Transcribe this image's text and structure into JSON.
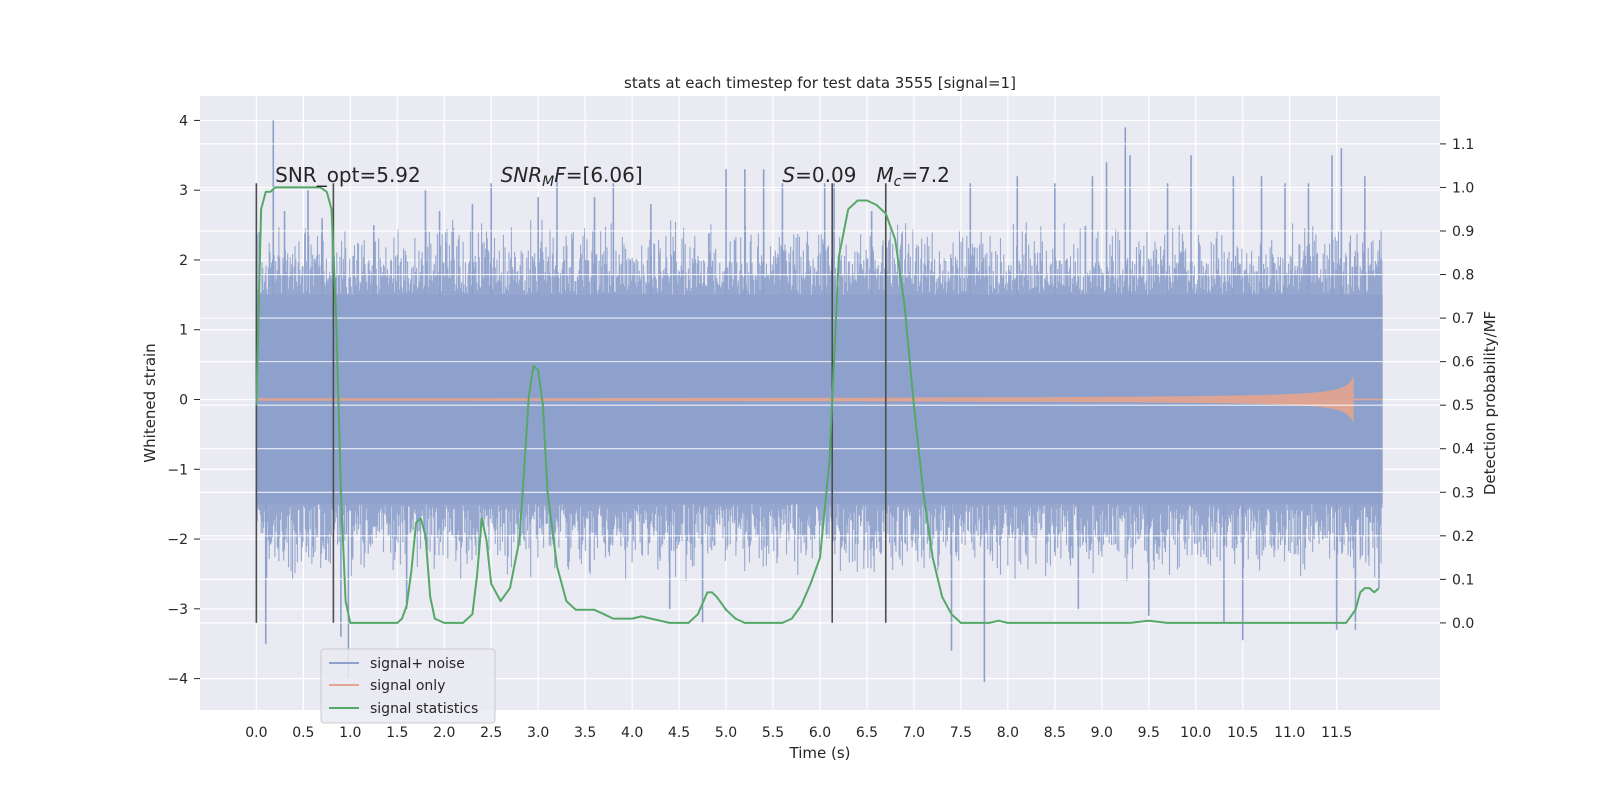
{
  "chart_data": {
    "type": "line",
    "title": "stats at each timestep for test data 3555 [signal=1]",
    "xlabel": "Time (s)",
    "ylabel": "Whitened strain",
    "y2label": "Detection probability/MF",
    "xlim": [
      -0.6,
      12.6
    ],
    "ylim": [
      -4.45,
      4.35
    ],
    "y2lim": [
      -0.2,
      1.21
    ],
    "x_ticks": [
      "0.0",
      "0.5",
      "1.0",
      "1.5",
      "2.0",
      "2.5",
      "3.0",
      "3.5",
      "4.0",
      "4.5",
      "5.0",
      "5.5",
      "6.0",
      "6.5",
      "7.0",
      "7.5",
      "8.0",
      "8.5",
      "9.0",
      "9.5",
      "10.0",
      "10.5",
      "11.0",
      "11.5"
    ],
    "y_ticks": [
      "4",
      "3",
      "2",
      "1",
      "0",
      "−1",
      "−2",
      "−3",
      "−4"
    ],
    "y2_ticks": [
      "1.1",
      "1.0",
      "0.9",
      "0.8",
      "0.7",
      "0.6",
      "0.5",
      "0.4",
      "0.3",
      "0.2",
      "0.1",
      "0.0"
    ],
    "grid": true,
    "legend_position": "lower-left",
    "annotations": [
      {
        "text": "SNR_opt=5.92",
        "x": 0.2,
        "y": 3.12
      },
      {
        "mathLead": "SNR",
        "mathSub": "M",
        "mathTail": "F",
        "text": "=[6.06]",
        "x": 2.6,
        "y": 3.12
      },
      {
        "mathLead": "S",
        "text": "=0.09",
        "x": 5.6,
        "y": 3.12
      },
      {
        "mathLead": "M",
        "mathSub": "c",
        "text": "=7.2",
        "x": 6.6,
        "y": 3.12
      }
    ],
    "vlines": [
      {
        "x": 0.0,
        "ymin": -3.2,
        "ymax": 3.1
      },
      {
        "x": 0.82,
        "ymin": -3.2,
        "ymax": 3.1
      },
      {
        "x": 6.13,
        "ymin": -3.2,
        "ymax": 3.1
      },
      {
        "x": 6.7,
        "ymin": -3.2,
        "ymax": 3.1
      }
    ],
    "series": [
      {
        "name": "signal+ noise",
        "color": "#8da0cb",
        "axis": "left",
        "t_end": 11.99,
        "core_amplitude": 1.5,
        "typical_peak": 2.3,
        "spikes": [
          [
            0.03,
            2.4
          ],
          [
            0.05,
            -1.2
          ],
          [
            0.1,
            -3.5
          ],
          [
            0.18,
            4.0
          ],
          [
            0.3,
            2.7
          ],
          [
            0.55,
            3.0
          ],
          [
            0.7,
            2.6
          ],
          [
            0.9,
            -3.4
          ],
          [
            0.98,
            -4.0
          ],
          [
            1.25,
            2.5
          ],
          [
            1.6,
            -3.0
          ],
          [
            1.8,
            3.0
          ],
          [
            1.95,
            2.7
          ],
          [
            2.3,
            2.8
          ],
          [
            2.5,
            3.1
          ],
          [
            3.0,
            2.9
          ],
          [
            3.2,
            3.2
          ],
          [
            3.6,
            2.9
          ],
          [
            3.8,
            3.1
          ],
          [
            4.2,
            2.8
          ],
          [
            4.4,
            -3.0
          ],
          [
            4.75,
            -3.2
          ],
          [
            5.0,
            3.3
          ],
          [
            5.2,
            3.3
          ],
          [
            5.4,
            3.3
          ],
          [
            5.6,
            3.1
          ],
          [
            6.05,
            3.1
          ],
          [
            6.15,
            3.1
          ],
          [
            6.55,
            2.7
          ],
          [
            7.4,
            -3.6
          ],
          [
            7.6,
            3.1
          ],
          [
            7.75,
            -4.05
          ],
          [
            8.1,
            3.2
          ],
          [
            8.5,
            3.1
          ],
          [
            8.75,
            -3.0
          ],
          [
            8.9,
            3.2
          ],
          [
            9.05,
            3.4
          ],
          [
            9.25,
            3.9
          ],
          [
            9.3,
            3.5
          ],
          [
            9.5,
            -3.1
          ],
          [
            9.7,
            3.1
          ],
          [
            9.95,
            3.5
          ],
          [
            10.3,
            -3.2
          ],
          [
            10.4,
            3.2
          ],
          [
            10.5,
            -3.45
          ],
          [
            10.7,
            3.2
          ],
          [
            10.95,
            3.1
          ],
          [
            11.2,
            3.1
          ],
          [
            11.45,
            3.5
          ],
          [
            11.5,
            -3.3
          ],
          [
            11.55,
            3.6
          ],
          [
            11.7,
            -3.3
          ],
          [
            11.8,
            3.2
          ],
          [
            11.95,
            -2.7
          ]
        ]
      },
      {
        "name": "signal only",
        "color": "#e5a48d",
        "axis": "left",
        "chirp_peak_time": 11.68,
        "chirp_peak_amplitude": 0.65,
        "visible_from": 7.0
      },
      {
        "name": "signal statistics",
        "color": "#55a868",
        "axis": "right",
        "x": [
          0.0,
          0.05,
          0.1,
          0.15,
          0.2,
          0.3,
          0.4,
          0.5,
          0.6,
          0.68,
          0.75,
          0.8,
          0.85,
          0.9,
          0.95,
          1.0,
          1.05,
          1.1,
          1.3,
          1.5,
          1.55,
          1.6,
          1.65,
          1.7,
          1.75,
          1.8,
          1.85,
          1.9,
          2.0,
          2.1,
          2.2,
          2.3,
          2.35,
          2.4,
          2.45,
          2.5,
          2.6,
          2.7,
          2.8,
          2.85,
          2.9,
          2.95,
          3.0,
          3.05,
          3.1,
          3.2,
          3.3,
          3.4,
          3.5,
          3.6,
          3.7,
          3.8,
          4.0,
          4.1,
          4.2,
          4.4,
          4.6,
          4.7,
          4.8,
          4.85,
          4.9,
          5.0,
          5.1,
          5.2,
          5.4,
          5.6,
          5.7,
          5.8,
          5.9,
          6.0,
          6.1,
          6.2,
          6.3,
          6.4,
          6.5,
          6.6,
          6.7,
          6.8,
          6.9,
          7.0,
          7.1,
          7.2,
          7.3,
          7.4,
          7.5,
          7.6,
          7.7,
          7.8,
          7.9,
          8.0,
          8.2,
          8.5,
          9.0,
          9.3,
          9.5,
          9.7,
          10.0,
          10.5,
          10.8,
          11.0,
          11.2,
          11.5,
          11.6,
          11.7,
          11.75,
          11.8,
          11.85,
          11.9,
          11.95
        ],
        "values": [
          0.5,
          0.95,
          0.99,
          0.99,
          1.0,
          1.0,
          1.0,
          1.0,
          1.0,
          1.0,
          0.99,
          0.95,
          0.7,
          0.3,
          0.05,
          0.0,
          0.0,
          0.0,
          0.0,
          0.0,
          0.01,
          0.04,
          0.12,
          0.23,
          0.24,
          0.2,
          0.06,
          0.01,
          0.0,
          0.0,
          0.0,
          0.02,
          0.11,
          0.24,
          0.19,
          0.09,
          0.05,
          0.08,
          0.19,
          0.35,
          0.52,
          0.59,
          0.58,
          0.5,
          0.3,
          0.13,
          0.05,
          0.03,
          0.03,
          0.03,
          0.02,
          0.01,
          0.01,
          0.015,
          0.01,
          0.0,
          0.0,
          0.02,
          0.07,
          0.07,
          0.06,
          0.03,
          0.01,
          0.0,
          0.0,
          0.0,
          0.01,
          0.04,
          0.09,
          0.15,
          0.37,
          0.84,
          0.95,
          0.97,
          0.97,
          0.96,
          0.94,
          0.88,
          0.73,
          0.5,
          0.3,
          0.15,
          0.06,
          0.02,
          0.0,
          0.0,
          0.0,
          0.0,
          0.005,
          0.0,
          0.0,
          0.0,
          0.0,
          0.0,
          0.005,
          0.0,
          0.0,
          0.0,
          0.0,
          0.0,
          0.0,
          0.0,
          0.0,
          0.03,
          0.07,
          0.08,
          0.08,
          0.07,
          0.08
        ]
      }
    ]
  }
}
